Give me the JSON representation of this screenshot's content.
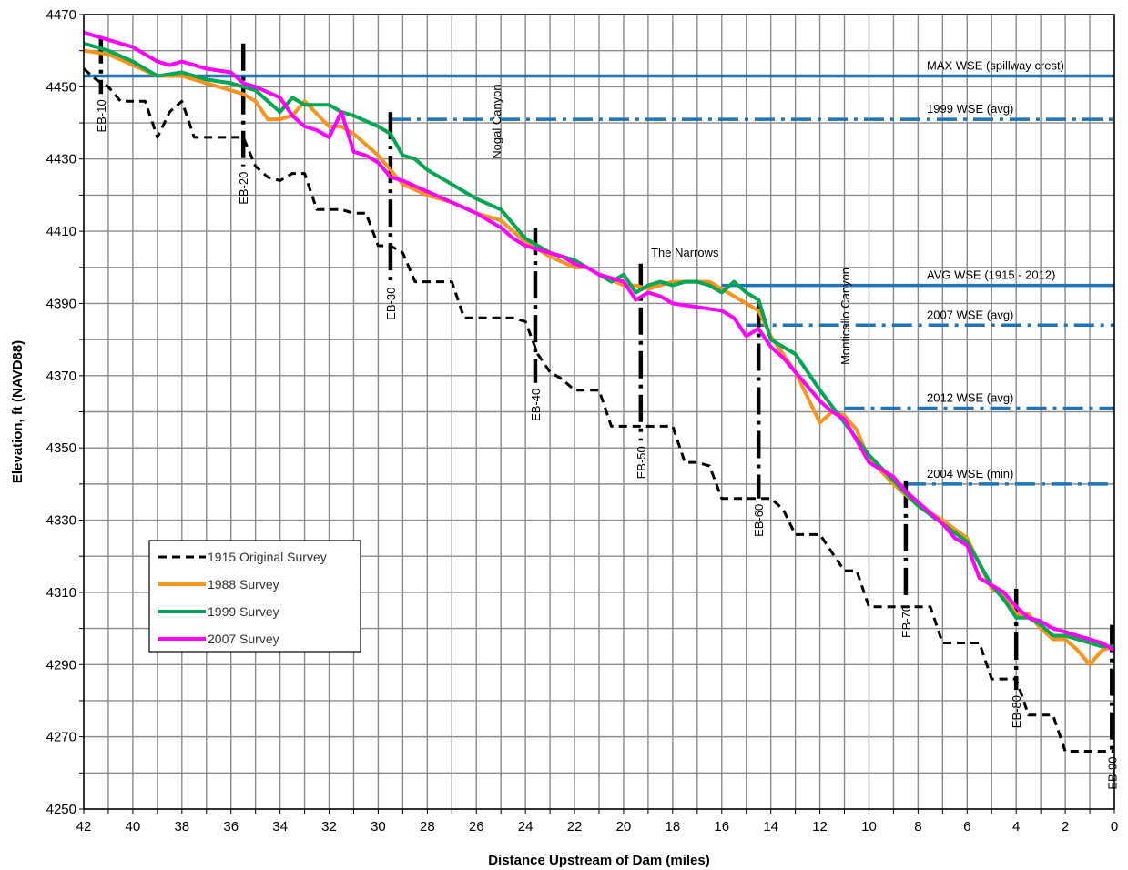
{
  "chart_data": {
    "type": "line",
    "title": "",
    "xlabel": "Distance Upstream of Dam (miles)",
    "ylabel": "Elevation, ft (NAVD88)",
    "xlim": [
      42,
      0
    ],
    "ylim": [
      4250,
      4470
    ],
    "x_ticks": [
      42,
      40,
      38,
      36,
      34,
      32,
      30,
      28,
      26,
      24,
      22,
      20,
      18,
      16,
      14,
      12,
      10,
      8,
      6,
      4,
      2,
      0
    ],
    "y_ticks": [
      4250,
      4270,
      4290,
      4310,
      4330,
      4350,
      4370,
      4390,
      4410,
      4430,
      4450,
      4470
    ],
    "grid": true,
    "legend_position": "bottom-left",
    "colors": {
      "s1915": "#000000",
      "s1988": "#f7941d",
      "s1999": "#00a651",
      "s2007": "#ff00ff",
      "wse": "#1f73b7"
    },
    "series": [
      {
        "name": "1915 Original Survey",
        "style": "dashed",
        "color": "#000000",
        "x": [
          42,
          41.5,
          41,
          40.5,
          40,
          39.5,
          39,
          38.5,
          38,
          37.5,
          37,
          36.5,
          36,
          35.5,
          35,
          34.5,
          34,
          33.5,
          33,
          32.5,
          32,
          31.5,
          31,
          30.5,
          30,
          29.5,
          29,
          28.5,
          28,
          27.5,
          27,
          26.5,
          26,
          25.5,
          25,
          24.5,
          24,
          23.5,
          23,
          22.5,
          22,
          21.5,
          21,
          20.5,
          20,
          19.5,
          19,
          18.5,
          18,
          17.5,
          17,
          16.5,
          16,
          15.5,
          15,
          14.5,
          14,
          13.5,
          13,
          12.5,
          12,
          11.5,
          11,
          10.5,
          10,
          9.5,
          9,
          8.5,
          8,
          7.5,
          7,
          6.5,
          6,
          5.5,
          5,
          4.5,
          4,
          3.5,
          3,
          2.5,
          2,
          1.5,
          1,
          0.5,
          0
        ],
        "y": [
          4455,
          4452,
          4450,
          4446,
          4446,
          4446,
          4436,
          4443,
          4446,
          4436,
          4436,
          4436,
          4436,
          4436,
          4428,
          4425,
          4424,
          4426,
          4426,
          4416,
          4416,
          4416,
          4415,
          4415,
          4406,
          4406,
          4404,
          4396,
          4396,
          4396,
          4396,
          4386,
          4386,
          4386,
          4386,
          4386,
          4385,
          4376,
          4371,
          4369,
          4366,
          4366,
          4366,
          4356,
          4356,
          4356,
          4356,
          4356,
          4356,
          4346,
          4346,
          4345,
          4336,
          4336,
          4336,
          4336,
          4336,
          4333,
          4326,
          4326,
          4326,
          4321,
          4316,
          4316,
          4306,
          4306,
          4306,
          4306,
          4306,
          4306,
          4296,
          4296,
          4296,
          4296,
          4286,
          4286,
          4286,
          4276,
          4276,
          4276,
          4266,
          4266,
          4266,
          4266,
          4266
        ]
      },
      {
        "name": "1988 Survey",
        "style": "solid",
        "color": "#f7941d",
        "x": [
          42,
          41,
          40,
          39,
          38,
          37,
          36,
          35.5,
          35,
          34.5,
          34,
          33.5,
          33,
          32,
          31.5,
          31,
          30,
          29,
          28,
          27,
          26,
          25.5,
          25,
          24.5,
          24,
          23,
          22,
          21.5,
          21,
          20,
          19.5,
          19,
          18.5,
          18,
          17.5,
          17,
          16.5,
          16,
          15,
          14.5,
          14,
          13.5,
          13,
          12.5,
          12,
          11.5,
          11,
          10.5,
          10,
          9,
          8,
          7,
          6,
          5.5,
          5,
          4.5,
          4,
          3.5,
          3,
          2.5,
          2,
          1.5,
          1,
          0.5,
          0
        ],
        "y": [
          4460,
          4459,
          4456,
          4453,
          4453,
          4451,
          4449,
          4448,
          4446,
          4441,
          4441,
          4442,
          4446,
          4439,
          4439,
          4437,
          4431,
          4423,
          4420,
          4418,
          4415,
          4414,
          4413,
          4410,
          4407,
          4403,
          4400,
          4400,
          4398,
          4395,
          4395,
          4394,
          4395,
          4396,
          4396,
          4396,
          4396,
          4394,
          4390,
          4388,
          4381,
          4376,
          4371,
          4364,
          4357,
          4360,
          4359,
          4355,
          4347,
          4340,
          4334,
          4330,
          4325,
          4318,
          4311,
          4309,
          4304,
          4304,
          4300,
          4297,
          4297,
          4294,
          4290,
          4294,
          4295
        ]
      },
      {
        "name": "1999 Survey",
        "style": "solid",
        "color": "#00a651",
        "x": [
          42,
          41,
          40,
          39,
          38,
          37,
          36,
          35,
          34,
          33.5,
          33,
          32.5,
          32,
          31.5,
          31,
          30,
          29.5,
          29,
          28.5,
          28,
          27,
          26,
          25,
          24.5,
          24,
          23,
          22,
          21.5,
          21,
          20.5,
          20,
          19.5,
          19,
          18.5,
          18,
          17.5,
          17,
          16.5,
          16,
          15.5,
          15,
          14.5,
          14,
          13.5,
          13,
          12.5,
          12,
          11,
          10,
          9,
          8,
          7,
          6,
          5.5,
          5,
          4.5,
          4,
          3.5,
          3,
          2.5,
          2,
          1.5,
          1,
          0.5,
          0
        ],
        "y": [
          4462,
          4460,
          4457,
          4453,
          4454,
          4452,
          4451,
          4449,
          4443,
          4447,
          4445,
          4445,
          4445,
          4443,
          4442,
          4439,
          4437,
          4431,
          4430,
          4427,
          4423,
          4419,
          4416,
          4412,
          4408,
          4404,
          4402,
          4400,
          4398,
          4396,
          4398,
          4393,
          4395,
          4396,
          4395,
          4396,
          4396,
          4395,
          4393,
          4396,
          4393,
          4391,
          4380,
          4378,
          4376,
          4371,
          4366,
          4357,
          4348,
          4341,
          4334,
          4329,
          4324,
          4318,
          4312,
          4308,
          4303,
          4303,
          4301,
          4298,
          4298,
          4297,
          4296,
          4295,
          4295
        ]
      },
      {
        "name": "2007 Survey",
        "style": "solid",
        "color": "#ff00ff",
        "x": [
          42,
          41,
          40,
          39,
          38.5,
          38,
          37,
          36,
          35.5,
          35,
          34,
          33.5,
          33,
          32.5,
          32,
          31.5,
          31,
          30.5,
          30,
          29.5,
          29,
          28,
          27,
          26,
          25,
          24.5,
          24,
          23.5,
          23,
          22.5,
          22,
          21.5,
          21,
          20.5,
          20,
          19.5,
          19,
          18.5,
          18,
          17,
          16,
          15.5,
          15,
          14.5,
          14,
          13.5,
          13,
          12.5,
          12,
          11.5,
          11,
          10.5,
          10,
          9.5,
          9,
          8.5,
          8,
          7.5,
          7,
          6.5,
          6,
          5.5,
          5,
          4.5,
          4,
          3.5,
          3,
          2.5,
          2,
          1.5,
          1,
          0.5,
          0
        ],
        "y": [
          4465,
          4463,
          4461,
          4457,
          4456,
          4457,
          4455,
          4454,
          4451,
          4450,
          4447,
          4442,
          4439,
          4438,
          4436,
          4443,
          4432,
          4431,
          4429,
          4425,
          4424,
          4421,
          4418,
          4415,
          4411,
          4408,
          4406,
          4405,
          4404,
          4403,
          4401,
          4400,
          4398,
          4397,
          4396,
          4391,
          4393,
          4392,
          4390,
          4389,
          4388,
          4386,
          4381,
          4383,
          4378,
          4375,
          4371,
          4367,
          4363,
          4360,
          4358,
          4352,
          4346,
          4344,
          4342,
          4338,
          4335,
          4332,
          4329,
          4325,
          4323,
          4314,
          4312,
          4310,
          4306,
          4303,
          4302,
          4300,
          4299,
          4298,
          4297,
          4296,
          4294
        ]
      }
    ],
    "reference_lines": [
      {
        "label": "MAX WSE (spillway crest)",
        "y": 4453,
        "x_start": 42,
        "x_end": 0,
        "style": "solid"
      },
      {
        "label": "1999 WSE (avg)",
        "y": 4441,
        "x_start": 29.5,
        "x_end": 0,
        "style": "dashdot"
      },
      {
        "label": "AVG WSE (1915 - 2012)",
        "y": 4395,
        "x_start": 16,
        "x_end": 0,
        "style": "solid"
      },
      {
        "label": "2007 WSE (avg)",
        "y": 4384,
        "x_start": 15,
        "x_end": 0,
        "style": "dashdot"
      },
      {
        "label": "2012 WSE (avg)",
        "y": 4361,
        "x_start": 11,
        "x_end": 0,
        "style": "dashdot"
      },
      {
        "label": "2004 WSE (min)",
        "y": 4340,
        "x_start": 8.5,
        "x_end": 0,
        "style": "dashdot"
      }
    ],
    "range_lines": [
      {
        "label": "EB-10",
        "x": 41.3,
        "y_top": 4464,
        "y_bottom": 4448
      },
      {
        "label": "EB-20",
        "x": 35.5,
        "y_top": 4462,
        "y_bottom": 4428
      },
      {
        "label": "EB-30",
        "x": 29.5,
        "y_top": 4443,
        "y_bottom": 4396
      },
      {
        "label": "EB-40",
        "x": 23.6,
        "y_top": 4411,
        "y_bottom": 4368
      },
      {
        "label": "EB-50",
        "x": 19.3,
        "y_top": 4401,
        "y_bottom": 4352
      },
      {
        "label": "EB-60",
        "x": 14.5,
        "y_top": 4391,
        "y_bottom": 4336
      },
      {
        "label": "EB-70",
        "x": 8.5,
        "y_top": 4341,
        "y_bottom": 4308
      },
      {
        "label": "EB-80",
        "x": 4,
        "y_top": 4311,
        "y_bottom": 4283
      },
      {
        "label": "EB-90",
        "x": 0.1,
        "y_top": 4301,
        "y_bottom": 4266
      }
    ],
    "annotations": [
      {
        "text": "Nogal Canyon",
        "x": 25,
        "y": 4430,
        "rotate": true
      },
      {
        "text": "The Narrows",
        "x": 17.5,
        "y": 4403,
        "rotate": false
      },
      {
        "text": "Monticello Canyon",
        "x": 10.8,
        "y": 4373,
        "rotate": true
      }
    ]
  }
}
